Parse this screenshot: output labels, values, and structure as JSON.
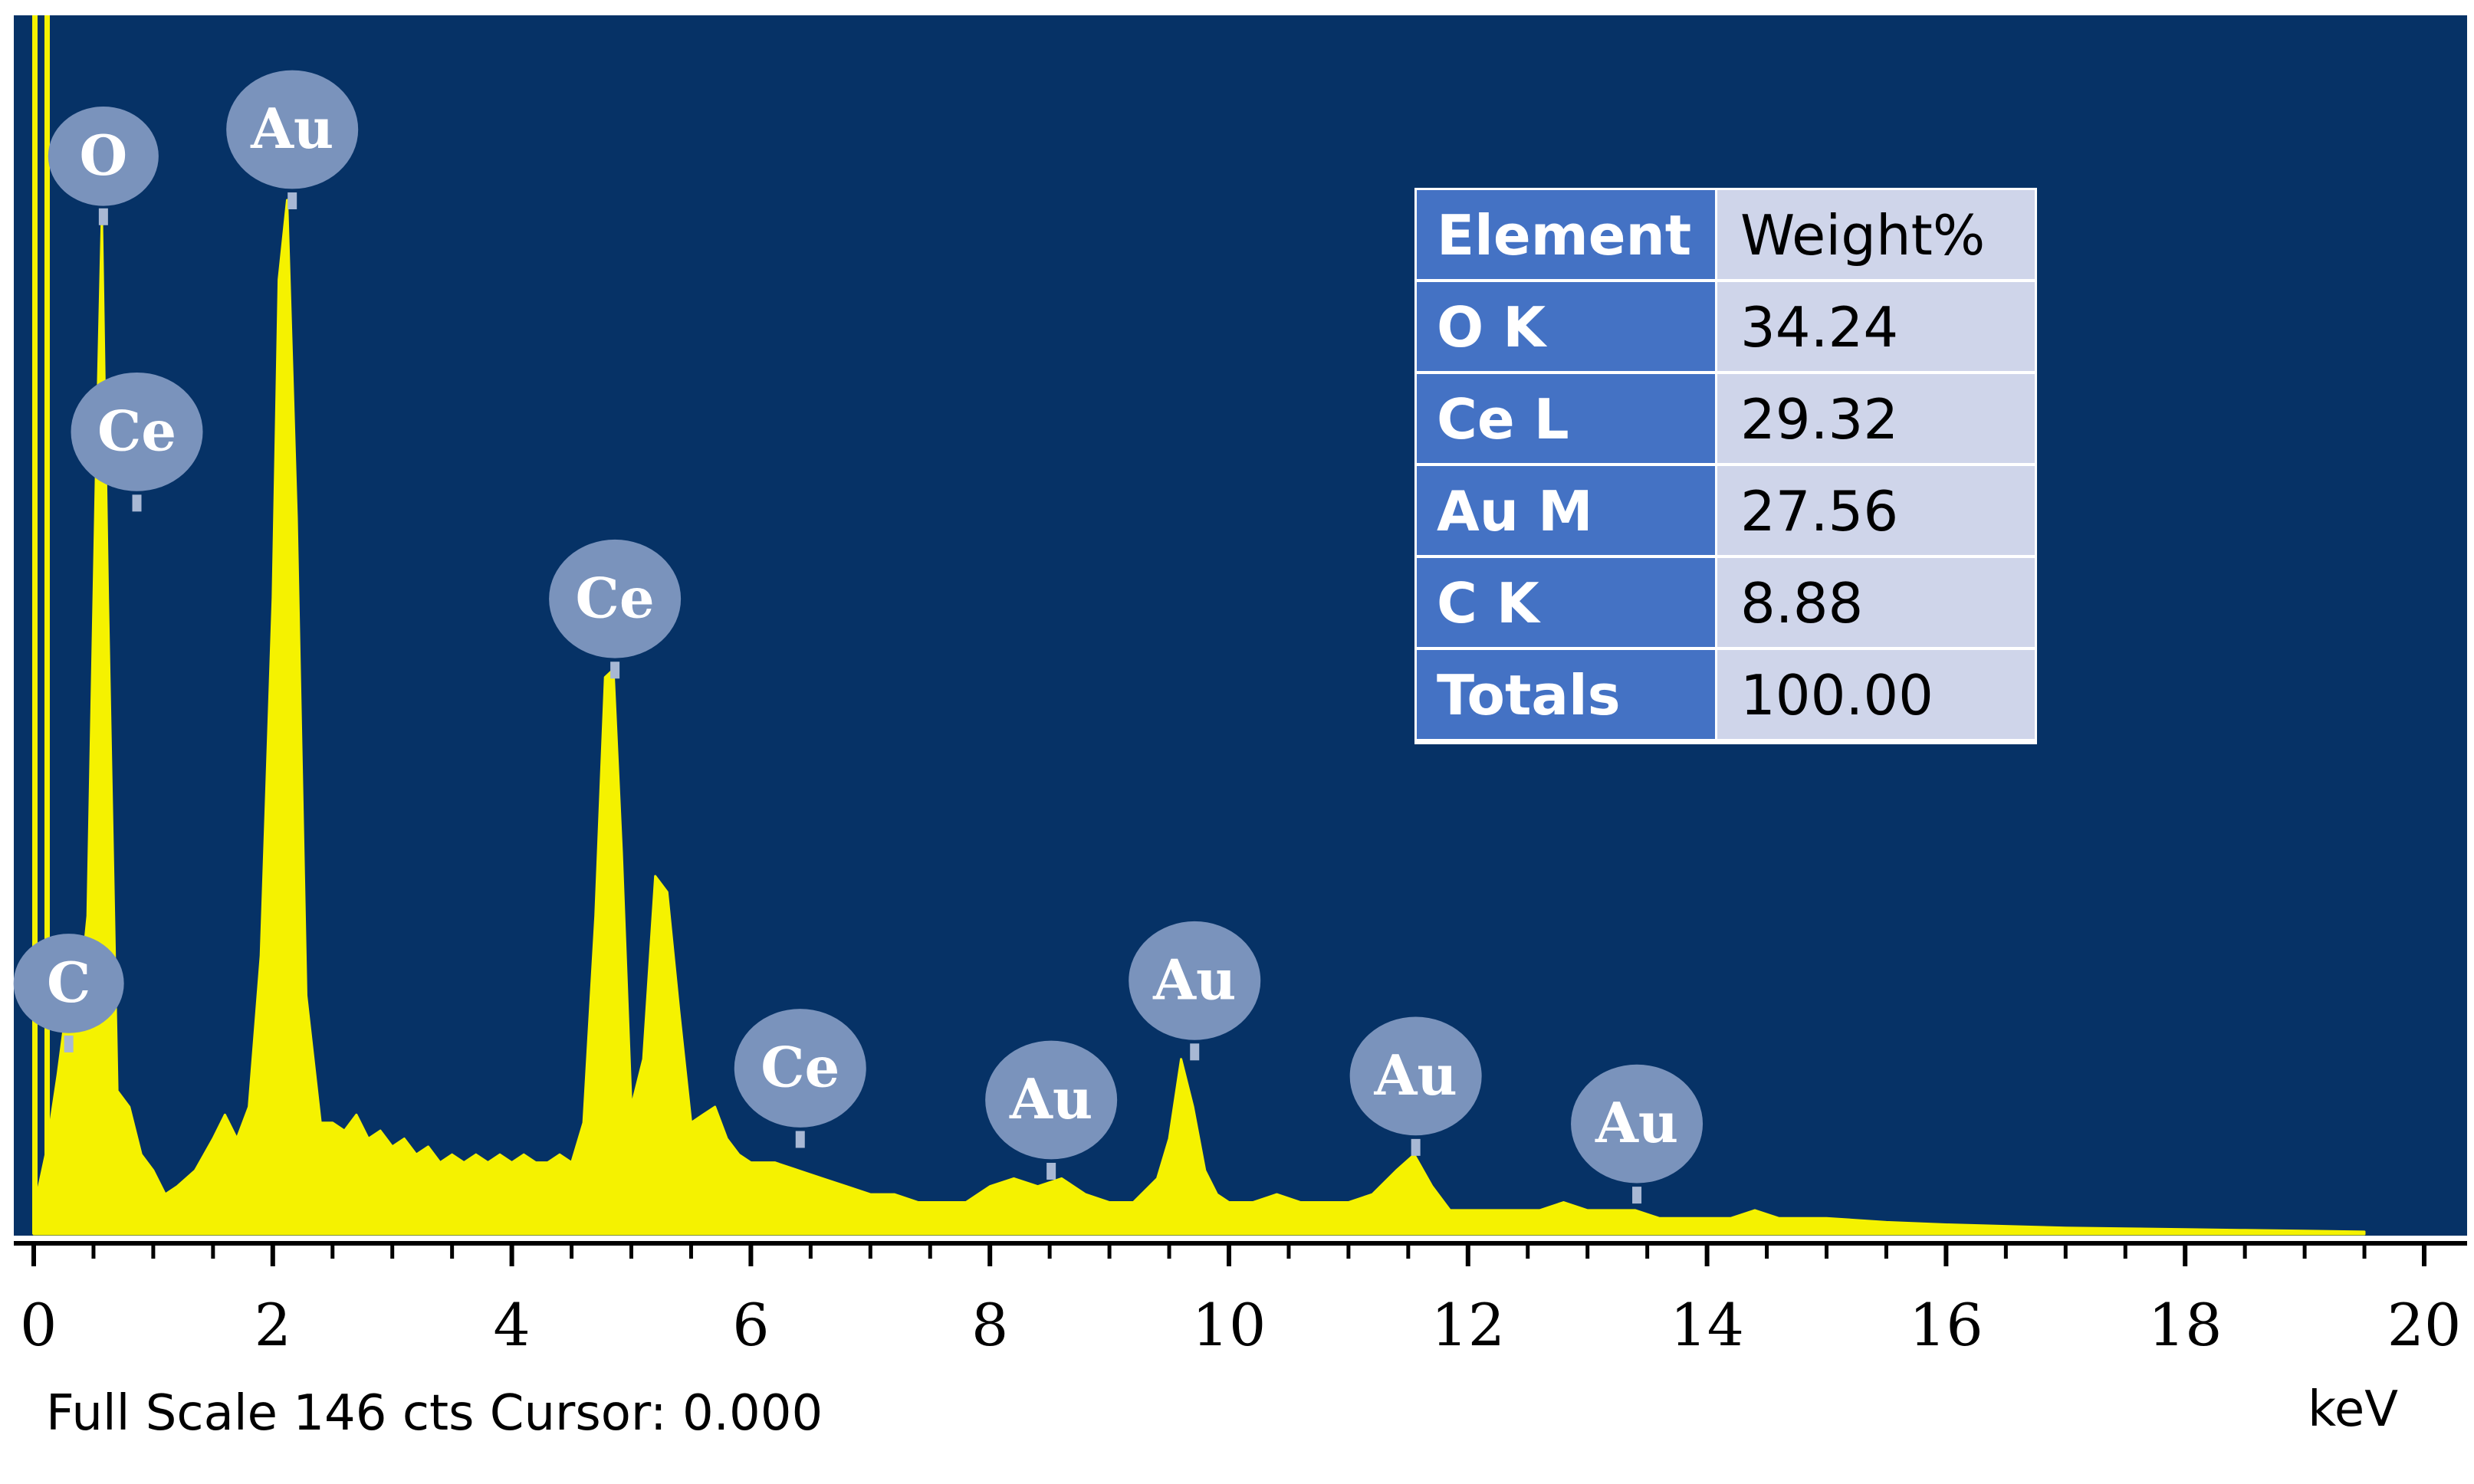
{
  "chart_data": {
    "type": "line",
    "xlabel": "keV",
    "xlim": [
      0,
      20
    ],
    "xticks": [
      "0",
      "2",
      "4",
      "6",
      "8",
      "10",
      "12",
      "14",
      "16",
      "18",
      "20"
    ],
    "ylim": [
      0,
      146
    ],
    "footer": "Full Scale 146 cts Cursor: 0.000",
    "colors": {
      "plot_bg": "#063266",
      "spectrum": "#f5f200",
      "label_bubble": "#7a93bc",
      "table_head": "#4472c4",
      "table_cell": "#cfd5ea"
    },
    "series": [
      {
        "x": [
          0,
          0.1,
          0.2,
          0.27,
          0.35,
          0.45,
          0.52,
          0.57,
          0.62,
          0.7,
          0.8,
          0.9,
          1.0,
          1.1,
          1.2,
          1.35,
          1.5,
          1.6,
          1.7,
          1.8,
          1.9,
          2.0,
          2.05,
          2.12,
          2.2,
          2.28,
          2.4,
          2.5,
          2.6,
          2.7,
          2.8,
          2.9,
          3.0,
          3.1,
          3.2,
          3.3,
          3.4,
          3.5,
          3.6,
          3.7,
          3.8,
          3.9,
          4.0,
          4.1,
          4.2,
          4.3,
          4.4,
          4.5,
          4.6,
          4.7,
          4.78,
          4.85,
          4.92,
          5.0,
          5.1,
          5.2,
          5.3,
          5.4,
          5.5,
          5.6,
          5.7,
          5.8,
          5.9,
          6.0,
          6.2,
          6.4,
          6.6,
          6.8,
          7.0,
          7.2,
          7.4,
          7.6,
          7.8,
          8.0,
          8.2,
          8.4,
          8.6,
          8.8,
          9.0,
          9.2,
          9.4,
          9.5,
          9.6,
          9.7,
          9.8,
          9.9,
          10.0,
          10.2,
          10.4,
          10.6,
          10.8,
          11.0,
          11.2,
          11.4,
          11.55,
          11.7,
          11.85,
          12.0,
          12.2,
          12.4,
          12.6,
          12.8,
          13.0,
          13.2,
          13.4,
          13.6,
          13.8,
          14.0,
          14.2,
          14.4,
          14.6,
          14.8,
          15.0,
          15.5,
          16.0,
          16.5,
          17.0,
          17.5,
          18.0,
          18.5,
          19.0,
          19.5
        ],
        "y": [
          3,
          10,
          20,
          28,
          25,
          40,
          95,
          128,
          80,
          18,
          16,
          10,
          8,
          5,
          6,
          8,
          12,
          15,
          12,
          16,
          35,
          80,
          120,
          130,
          90,
          30,
          14,
          14,
          13,
          15,
          12,
          13,
          11,
          12,
          10,
          11,
          9,
          10,
          9,
          10,
          9,
          10,
          9,
          10,
          9,
          9,
          10,
          9,
          14,
          40,
          70,
          71,
          48,
          16,
          22,
          45,
          43,
          28,
          14,
          15,
          16,
          12,
          10,
          9,
          9,
          8,
          7,
          6,
          5,
          5,
          4,
          4,
          4,
          6,
          7,
          6,
          7,
          5,
          4,
          4,
          7,
          12,
          22,
          16,
          8,
          5,
          4,
          4,
          5,
          4,
          4,
          4,
          5,
          8,
          10,
          6,
          3,
          3,
          3,
          3,
          3,
          4,
          3,
          3,
          3,
          2,
          2,
          2,
          2,
          3,
          2,
          2,
          2,
          1.5,
          1.2,
          1.0,
          0.8,
          0.7,
          0.6,
          0.5,
          0.4,
          0.3
        ]
      }
    ],
    "peak_labels": [
      {
        "text": "O",
        "x": 0.57,
        "y": 128
      },
      {
        "text": "Au",
        "x": 2.15,
        "y": 130
      },
      {
        "text": "Ce",
        "x": 0.85,
        "y": 92
      },
      {
        "text": "Ce",
        "x": 4.85,
        "y": 71
      },
      {
        "text": "C",
        "x": 0.28,
        "y": 24
      },
      {
        "text": "Ce",
        "x": 6.4,
        "y": 12
      },
      {
        "text": "Au",
        "x": 8.5,
        "y": 8
      },
      {
        "text": "Au",
        "x": 9.7,
        "y": 23
      },
      {
        "text": "Au",
        "x": 11.55,
        "y": 11
      },
      {
        "text": "Au",
        "x": 13.4,
        "y": 5
      }
    ],
    "table": {
      "headers": [
        "Element",
        "Weight%"
      ],
      "rows": [
        [
          "O K",
          "34.24"
        ],
        [
          "Ce L",
          "29.32"
        ],
        [
          "Au M",
          "27.56"
        ],
        [
          "C K",
          "8.88"
        ],
        [
          "Totals",
          "100.00"
        ]
      ]
    }
  }
}
